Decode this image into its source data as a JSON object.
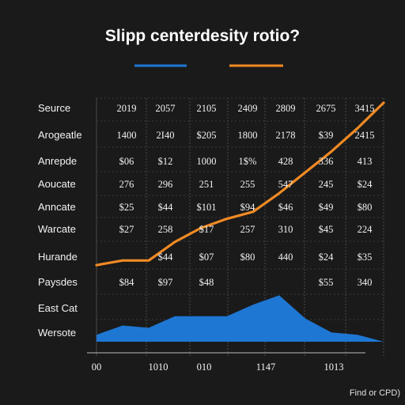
{
  "chart_data": {
    "type": "table",
    "title": "Slipp centerdesity rotio?",
    "legend_colors": [
      "#1f77d4",
      "#f08a24"
    ],
    "header": {
      "label": "Seurce",
      "values": [
        "2019",
        "2057",
        "2105",
        "2409",
        "2809",
        "2675",
        "3415"
      ]
    },
    "rows": [
      {
        "label": "Arogeatle",
        "values": [
          "1400",
          "2I40",
          "$205",
          "1800",
          "2178",
          "$39",
          "2415"
        ]
      },
      {
        "label": "Anrepde",
        "values": [
          "$06",
          "$12",
          "1000",
          "1$%",
          "428",
          "336",
          "413"
        ]
      },
      {
        "label": "Aoucate",
        "values": [
          "276",
          "296",
          "251",
          "255",
          "547",
          "245",
          "$24"
        ]
      },
      {
        "label": "Anncate",
        "values": [
          "$25",
          "$44",
          "$101",
          "$94",
          "$46",
          "$49",
          "$80"
        ]
      },
      {
        "label": "Warcate",
        "values": [
          "$27",
          "258",
          "$17",
          "257",
          "310",
          "$45",
          "224"
        ]
      },
      {
        "label": "Hurande",
        "values": [
          "",
          "$44",
          "$07",
          "$80",
          "440",
          "$24",
          "$35"
        ]
      },
      {
        "label": "Paysdes",
        "values": [
          "$84",
          "$97",
          "$48",
          "",
          "",
          "$55",
          "340"
        ]
      },
      {
        "label": "East Cat",
        "values": [
          "",
          "",
          "",
          "",
          "",
          "",
          ""
        ]
      },
      {
        "label": "Wersote",
        "values": [
          "",
          "",
          "",
          "",
          "",
          "",
          ""
        ]
      }
    ],
    "x_ticks": [
      "00",
      "1010",
      "010",
      "1147",
      "1013"
    ],
    "series": [
      {
        "color": "#1f77d4",
        "kind": "area",
        "x": [
          0,
          1,
          2,
          3,
          4,
          5,
          6,
          7,
          8,
          9,
          10,
          11
        ],
        "values": [
          0.3,
          0.7,
          0.6,
          1.1,
          1.1,
          1.1,
          1.6,
          2.0,
          1.0,
          0.4,
          0.3,
          0.0
        ]
      },
      {
        "color": "#f08a24",
        "kind": "line",
        "x": [
          0,
          1,
          2,
          3,
          4,
          5,
          6,
          7,
          8,
          9,
          10,
          11
        ],
        "values": [
          3.3,
          3.5,
          3.5,
          4.3,
          4.9,
          5.3,
          5.6,
          6.4,
          7.3,
          8.2,
          9.2,
          10.3
        ]
      }
    ],
    "ylim": [
      0,
      10.5
    ],
    "grid": true
  },
  "footer": "Find or CPD)"
}
